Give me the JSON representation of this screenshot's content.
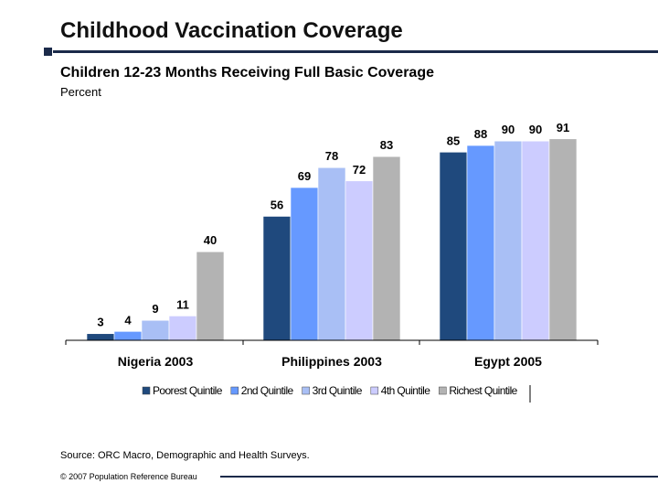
{
  "header": {
    "title": "Childhood Vaccination Coverage"
  },
  "chart_data": {
    "type": "bar",
    "title": "Children 12-23 Months Receiving Full Basic Coverage",
    "ylabel": "Percent",
    "ylim": [
      0,
      100
    ],
    "grid": false,
    "legend_position": "bottom",
    "categories": [
      "Nigeria 2003",
      "Philippines 2003",
      "Egypt 2005"
    ],
    "series": [
      {
        "name": "Poorest Quintile",
        "color": "#1f497d",
        "values": [
          3,
          56,
          85
        ]
      },
      {
        "name": "2nd Quintile",
        "color": "#6699ff",
        "values": [
          4,
          69,
          88
        ]
      },
      {
        "name": "3rd Quintile",
        "color": "#a9bff5",
        "values": [
          9,
          78,
          90
        ]
      },
      {
        "name": "4th Quintile",
        "color": "#ccccff",
        "values": [
          11,
          72,
          90
        ]
      },
      {
        "name": "Richest Quintile",
        "color": "#b3b3b3",
        "values": [
          40,
          83,
          91
        ]
      }
    ]
  },
  "footer": {
    "source": "Source: ORC Macro, Demographic and Health Surveys.",
    "copyright": "© 2007 Population Reference Bureau"
  }
}
